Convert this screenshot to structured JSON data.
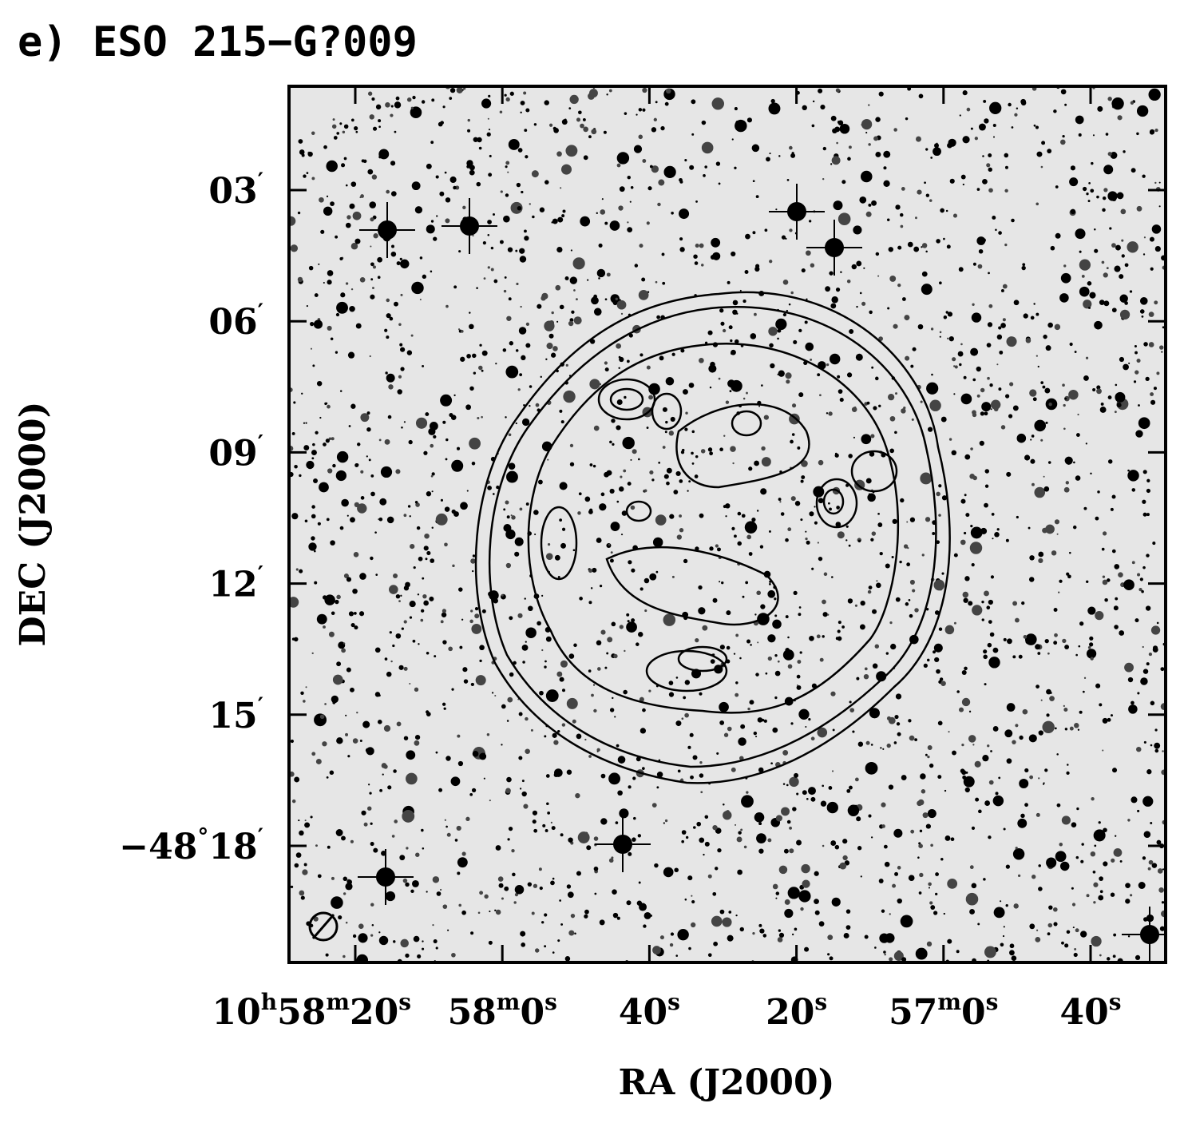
{
  "header": {
    "title": "e) ESO 215−G?009"
  },
  "axes": {
    "x_label": "RA (J2000)",
    "y_label": "DEC (J2000)",
    "x_tick_labels": [
      [
        "10",
        "h",
        "58",
        "m",
        "20",
        "s"
      ],
      [
        "58",
        "m",
        "0",
        "s"
      ],
      [
        "40",
        "s"
      ],
      [
        "20",
        "s"
      ],
      [
        "57",
        "m",
        "0",
        "s"
      ],
      [
        "40",
        "s"
      ]
    ],
    "y_tick_labels": [
      [
        "03",
        "′"
      ],
      [
        "06",
        "′"
      ],
      [
        "09",
        "′"
      ],
      [
        "12",
        "′"
      ],
      [
        "15",
        "′"
      ],
      [
        "−48",
        "°",
        "18",
        "′"
      ]
    ]
  }
}
